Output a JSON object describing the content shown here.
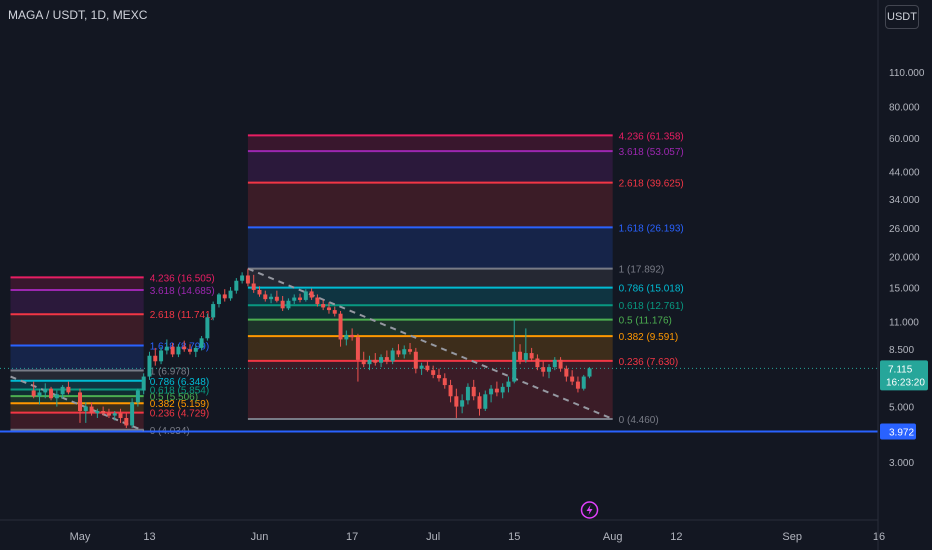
{
  "header": {
    "title": "MAGA / USDT, 1D, MEXC",
    "currency_button": "USDT"
  },
  "price_axis": {
    "ticks": [
      "110.000",
      "80.000",
      "60.000",
      "44.000",
      "34.000",
      "26.000",
      "20.000",
      "15.000",
      "11.000",
      "8.500",
      "5.000",
      "3.000"
    ],
    "current_price": "7.115",
    "countdown": "16:23:20",
    "hline_label": "3.972"
  },
  "time_axis": {
    "ticks": [
      "May",
      "13",
      "Jun",
      "17",
      "Jul",
      "15",
      "Aug",
      "12",
      "Sep",
      "16"
    ]
  },
  "colors": {
    "background": "#131722",
    "up": "#26a69a",
    "down": "#ef5350",
    "hline": "#2962ff",
    "current_price_label": "#26a69a",
    "flash_icon": "#e040fb"
  },
  "chart_data": {
    "type": "candlestick",
    "title": "MAGA / USDT, 1D, MEXC",
    "y_scale": "log",
    "ylim": [
      2.7,
      120
    ],
    "horizontal_line": 3.972,
    "current_price": 7.115,
    "x_range": [
      "2024-04-20",
      "2024-09-22"
    ],
    "candles": [
      {
        "d": "04-24",
        "o": 5.8,
        "h": 6.3,
        "l": 5.4,
        "c": 5.5
      },
      {
        "d": "04-25",
        "o": 5.5,
        "h": 5.9,
        "l": 5.1,
        "c": 5.7
      },
      {
        "d": "04-26",
        "o": 5.7,
        "h": 6.2,
        "l": 5.4,
        "c": 5.9
      },
      {
        "d": "04-27",
        "o": 5.9,
        "h": 6.0,
        "l": 5.3,
        "c": 5.4
      },
      {
        "d": "04-28",
        "o": 5.4,
        "h": 5.8,
        "l": 5.0,
        "c": 5.6
      },
      {
        "d": "04-29",
        "o": 5.6,
        "h": 6.1,
        "l": 5.4,
        "c": 6.0
      },
      {
        "d": "04-30",
        "o": 6.0,
        "h": 6.3,
        "l": 5.6,
        "c": 5.7
      },
      {
        "d": "05-01",
        "o": 5.7,
        "h": 5.9,
        "l": 4.3,
        "c": 4.8
      },
      {
        "d": "05-02",
        "o": 4.8,
        "h": 5.2,
        "l": 4.3,
        "c": 5.0
      },
      {
        "d": "05-03",
        "o": 5.0,
        "h": 5.2,
        "l": 4.6,
        "c": 4.7
      },
      {
        "d": "05-04",
        "o": 4.7,
        "h": 4.9,
        "l": 4.5,
        "c": 4.8
      },
      {
        "d": "05-05",
        "o": 4.8,
        "h": 5.0,
        "l": 4.6,
        "c": 4.7
      },
      {
        "d": "05-06",
        "o": 4.7,
        "h": 4.9,
        "l": 4.5,
        "c": 4.6
      },
      {
        "d": "05-07",
        "o": 4.6,
        "h": 4.8,
        "l": 4.4,
        "c": 4.7
      },
      {
        "d": "05-08",
        "o": 4.7,
        "h": 4.9,
        "l": 4.3,
        "c": 4.5
      },
      {
        "d": "05-09",
        "o": 4.5,
        "h": 4.7,
        "l": 4.1,
        "c": 4.2
      },
      {
        "d": "05-10",
        "o": 4.2,
        "h": 5.4,
        "l": 4.1,
        "c": 5.2
      },
      {
        "d": "05-11",
        "o": 5.2,
        "h": 5.9,
        "l": 5.0,
        "c": 5.8
      },
      {
        "d": "05-12",
        "o": 5.8,
        "h": 6.8,
        "l": 5.6,
        "c": 6.6
      },
      {
        "d": "05-13",
        "o": 6.6,
        "h": 8.3,
        "l": 6.4,
        "c": 8.0
      },
      {
        "d": "05-14",
        "o": 8.0,
        "h": 8.6,
        "l": 7.3,
        "c": 7.6
      },
      {
        "d": "05-15",
        "o": 7.6,
        "h": 8.7,
        "l": 7.4,
        "c": 8.4
      },
      {
        "d": "05-16",
        "o": 8.4,
        "h": 9.3,
        "l": 8.1,
        "c": 8.7
      },
      {
        "d": "05-17",
        "o": 8.7,
        "h": 9.0,
        "l": 7.9,
        "c": 8.1
      },
      {
        "d": "05-18",
        "o": 8.1,
        "h": 8.9,
        "l": 7.9,
        "c": 8.7
      },
      {
        "d": "05-19",
        "o": 8.7,
        "h": 9.2,
        "l": 8.3,
        "c": 8.5
      },
      {
        "d": "05-20",
        "o": 8.5,
        "h": 8.9,
        "l": 8.1,
        "c": 8.3
      },
      {
        "d": "05-21",
        "o": 8.3,
        "h": 8.8,
        "l": 7.9,
        "c": 8.6
      },
      {
        "d": "05-22",
        "o": 8.6,
        "h": 9.6,
        "l": 8.4,
        "c": 9.4
      },
      {
        "d": "05-23",
        "o": 9.4,
        "h": 11.8,
        "l": 9.2,
        "c": 11.4
      },
      {
        "d": "05-24",
        "o": 11.4,
        "h": 13.2,
        "l": 11.1,
        "c": 12.9
      },
      {
        "d": "05-25",
        "o": 12.9,
        "h": 14.3,
        "l": 12.5,
        "c": 14.1
      },
      {
        "d": "05-26",
        "o": 14.1,
        "h": 14.8,
        "l": 13.2,
        "c": 13.6
      },
      {
        "d": "05-27",
        "o": 13.6,
        "h": 15.1,
        "l": 13.3,
        "c": 14.6
      },
      {
        "d": "05-28",
        "o": 14.6,
        "h": 16.4,
        "l": 14.2,
        "c": 16.0
      },
      {
        "d": "05-29",
        "o": 16.0,
        "h": 17.3,
        "l": 15.6,
        "c": 16.8
      },
      {
        "d": "05-30",
        "o": 16.8,
        "h": 17.89,
        "l": 15.2,
        "c": 15.6
      },
      {
        "d": "05-31",
        "o": 15.6,
        "h": 16.9,
        "l": 14.3,
        "c": 14.7
      },
      {
        "d": "06-01",
        "o": 14.7,
        "h": 15.2,
        "l": 13.8,
        "c": 14.1
      },
      {
        "d": "06-02",
        "o": 14.1,
        "h": 14.6,
        "l": 13.2,
        "c": 13.5
      },
      {
        "d": "06-03",
        "o": 13.5,
        "h": 14.2,
        "l": 13.0,
        "c": 13.8
      },
      {
        "d": "06-04",
        "o": 13.8,
        "h": 14.6,
        "l": 13.1,
        "c": 13.3
      },
      {
        "d": "06-05",
        "o": 13.3,
        "h": 13.9,
        "l": 12.1,
        "c": 12.4
      },
      {
        "d": "06-06",
        "o": 12.4,
        "h": 13.6,
        "l": 12.2,
        "c": 13.3
      },
      {
        "d": "06-07",
        "o": 13.3,
        "h": 14.1,
        "l": 12.9,
        "c": 13.7
      },
      {
        "d": "06-08",
        "o": 13.7,
        "h": 14.2,
        "l": 13.1,
        "c": 13.4
      },
      {
        "d": "06-09",
        "o": 13.4,
        "h": 14.8,
        "l": 13.2,
        "c": 14.5
      },
      {
        "d": "06-10",
        "o": 14.5,
        "h": 14.9,
        "l": 13.4,
        "c": 13.7
      },
      {
        "d": "06-11",
        "o": 13.7,
        "h": 14.1,
        "l": 12.6,
        "c": 12.9
      },
      {
        "d": "06-12",
        "o": 12.9,
        "h": 13.4,
        "l": 12.2,
        "c": 12.5
      },
      {
        "d": "06-13",
        "o": 12.5,
        "h": 13.1,
        "l": 11.8,
        "c": 12.2
      },
      {
        "d": "06-14",
        "o": 12.2,
        "h": 12.6,
        "l": 11.5,
        "c": 11.8
      },
      {
        "d": "06-15",
        "o": 11.8,
        "h": 12.1,
        "l": 8.7,
        "c": 9.3
      },
      {
        "d": "06-16",
        "o": 9.3,
        "h": 10.1,
        "l": 8.8,
        "c": 9.7
      },
      {
        "d": "06-17",
        "o": 9.7,
        "h": 10.3,
        "l": 9.2,
        "c": 9.5
      },
      {
        "d": "06-18",
        "o": 9.5,
        "h": 9.8,
        "l": 6.3,
        "c": 7.7
      },
      {
        "d": "06-19",
        "o": 7.7,
        "h": 8.3,
        "l": 7.2,
        "c": 7.4
      },
      {
        "d": "06-20",
        "o": 7.4,
        "h": 8.0,
        "l": 7.0,
        "c": 7.7
      },
      {
        "d": "06-21",
        "o": 7.7,
        "h": 8.2,
        "l": 7.3,
        "c": 7.5
      },
      {
        "d": "06-22",
        "o": 7.5,
        "h": 8.1,
        "l": 7.2,
        "c": 7.9
      },
      {
        "d": "06-23",
        "o": 7.9,
        "h": 8.4,
        "l": 7.4,
        "c": 7.6
      },
      {
        "d": "06-24",
        "o": 7.6,
        "h": 8.6,
        "l": 7.4,
        "c": 8.4
      },
      {
        "d": "06-25",
        "o": 8.4,
        "h": 8.9,
        "l": 7.9,
        "c": 8.1
      },
      {
        "d": "06-26",
        "o": 8.1,
        "h": 8.8,
        "l": 7.8,
        "c": 8.5
      },
      {
        "d": "06-27",
        "o": 8.5,
        "h": 9.0,
        "l": 8.1,
        "c": 8.3
      },
      {
        "d": "06-28",
        "o": 8.3,
        "h": 8.6,
        "l": 6.8,
        "c": 7.1
      },
      {
        "d": "06-29",
        "o": 7.1,
        "h": 7.5,
        "l": 6.7,
        "c": 7.3
      },
      {
        "d": "06-30",
        "o": 7.3,
        "h": 7.6,
        "l": 6.9,
        "c": 7.0
      },
      {
        "d": "07-01",
        "o": 7.0,
        "h": 7.3,
        "l": 6.5,
        "c": 6.7
      },
      {
        "d": "07-02",
        "o": 6.7,
        "h": 7.1,
        "l": 6.3,
        "c": 6.5
      },
      {
        "d": "07-03",
        "o": 6.5,
        "h": 6.8,
        "l": 5.9,
        "c": 6.1
      },
      {
        "d": "07-04",
        "o": 6.1,
        "h": 6.4,
        "l": 5.2,
        "c": 5.5
      },
      {
        "d": "07-05",
        "o": 5.5,
        "h": 5.9,
        "l": 4.5,
        "c": 5.0
      },
      {
        "d": "07-06",
        "o": 5.0,
        "h": 5.6,
        "l": 4.7,
        "c": 5.3
      },
      {
        "d": "07-07",
        "o": 5.3,
        "h": 6.2,
        "l": 5.1,
        "c": 6.0
      },
      {
        "d": "07-08",
        "o": 6.0,
        "h": 6.4,
        "l": 5.3,
        "c": 5.5
      },
      {
        "d": "07-09",
        "o": 5.5,
        "h": 5.7,
        "l": 4.6,
        "c": 4.9
      },
      {
        "d": "07-10",
        "o": 4.9,
        "h": 5.8,
        "l": 4.8,
        "c": 5.6
      },
      {
        "d": "07-11",
        "o": 5.6,
        "h": 6.1,
        "l": 5.2,
        "c": 5.9
      },
      {
        "d": "07-12",
        "o": 5.9,
        "h": 6.3,
        "l": 5.5,
        "c": 5.7
      },
      {
        "d": "07-13",
        "o": 5.7,
        "h": 6.2,
        "l": 5.4,
        "c": 6.0
      },
      {
        "d": "07-14",
        "o": 6.0,
        "h": 6.6,
        "l": 5.7,
        "c": 6.3
      },
      {
        "d": "07-15",
        "o": 6.3,
        "h": 11.2,
        "l": 6.2,
        "c": 8.3
      },
      {
        "d": "07-16",
        "o": 8.3,
        "h": 8.9,
        "l": 7.4,
        "c": 7.7
      },
      {
        "d": "07-17",
        "o": 7.7,
        "h": 10.3,
        "l": 7.5,
        "c": 8.2
      },
      {
        "d": "07-18",
        "o": 8.2,
        "h": 8.6,
        "l": 7.6,
        "c": 7.8
      },
      {
        "d": "07-19",
        "o": 7.8,
        "h": 8.1,
        "l": 7.0,
        "c": 7.2
      },
      {
        "d": "07-20",
        "o": 7.2,
        "h": 7.6,
        "l": 6.6,
        "c": 6.9
      },
      {
        "d": "07-21",
        "o": 6.9,
        "h": 7.4,
        "l": 6.5,
        "c": 7.2
      },
      {
        "d": "07-22",
        "o": 7.2,
        "h": 7.9,
        "l": 7.0,
        "c": 7.7
      },
      {
        "d": "07-23",
        "o": 7.7,
        "h": 7.9,
        "l": 6.9,
        "c": 7.1
      },
      {
        "d": "07-24",
        "o": 7.1,
        "h": 7.3,
        "l": 6.3,
        "c": 6.6
      },
      {
        "d": "07-25",
        "o": 6.6,
        "h": 7.0,
        "l": 6.1,
        "c": 6.3
      },
      {
        "d": "07-26",
        "o": 6.3,
        "h": 6.6,
        "l": 5.7,
        "c": 5.9
      },
      {
        "d": "07-27",
        "o": 5.9,
        "h": 6.7,
        "l": 5.8,
        "c": 6.6
      },
      {
        "d": "07-28",
        "o": 6.6,
        "h": 7.2,
        "l": 6.5,
        "c": 7.115
      }
    ],
    "fib_sets": [
      {
        "name": "fib-left",
        "start": "04-20",
        "end": "05-12",
        "label_date": "05-12",
        "levels": [
          {
            "ratio": "0",
            "value": "4.034",
            "color": "#787b86"
          },
          {
            "ratio": "0.236",
            "value": "4.729",
            "color": "#f23645"
          },
          {
            "ratio": "0.382",
            "value": "5.159",
            "color": "#ff9800"
          },
          {
            "ratio": "0.5",
            "value": "5.506",
            "color": "#4caf50"
          },
          {
            "ratio": "0.618",
            "value": "5.854",
            "color": "#089981"
          },
          {
            "ratio": "0.786",
            "value": "6.348",
            "color": "#00bcd4"
          },
          {
            "ratio": "1",
            "value": "6.978",
            "color": "#787b86"
          },
          {
            "ratio": "1.618",
            "value": "8.799",
            "color": "#2962ff"
          },
          {
            "ratio": "2.618",
            "value": "11.741",
            "color": "#f23645"
          },
          {
            "ratio": "3.618",
            "value": "14.685",
            "color": "#9c27b0"
          },
          {
            "ratio": "4.236",
            "value": "16.505",
            "color": "#e91e63"
          }
        ]
      },
      {
        "name": "fib-right",
        "start": "05-30",
        "end": "08-01",
        "label_date": "08-01",
        "levels": [
          {
            "ratio": "0",
            "value": "4.460",
            "color": "#787b86"
          },
          {
            "ratio": "0.236",
            "value": "7.630",
            "color": "#f23645"
          },
          {
            "ratio": "0.382",
            "value": "9.591",
            "color": "#ff9800"
          },
          {
            "ratio": "0.5",
            "value": "11.176",
            "color": "#4caf50"
          },
          {
            "ratio": "0.618",
            "value": "12.761",
            "color": "#089981"
          },
          {
            "ratio": "0.786",
            "value": "15.018",
            "color": "#00bcd4"
          },
          {
            "ratio": "1",
            "value": "17.892",
            "color": "#787b86"
          },
          {
            "ratio": "1.618",
            "value": "26.193",
            "color": "#2962ff"
          },
          {
            "ratio": "2.618",
            "value": "39.625",
            "color": "#f23645"
          },
          {
            "ratio": "3.618",
            "value": "53.057",
            "color": "#9c27b0"
          },
          {
            "ratio": "4.236",
            "value": "61.358",
            "color": "#e91e63"
          }
        ]
      }
    ],
    "trendlines": [
      {
        "from_date": "04-20",
        "from_price": 6.6,
        "to_date": "05-12",
        "to_price": 4.0
      },
      {
        "from_date": "05-30",
        "from_price": 17.9,
        "to_date": "08-01",
        "to_price": 4.46
      }
    ]
  }
}
